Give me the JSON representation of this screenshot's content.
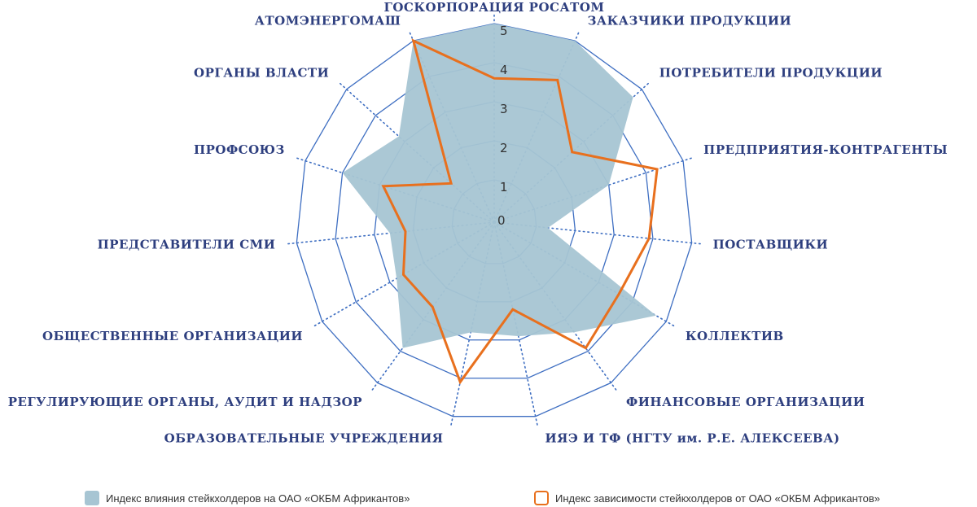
{
  "chart_data": {
    "type": "radar",
    "title": "",
    "categories": [
      "ГОСКОРПОРАЦИЯ РОСАТОМ",
      "ЗАКАЗЧИКИ ПРОДУКЦИИ",
      "ПОТРЕБИТЕЛИ ПРОДУКЦИИ",
      "ПРЕДПРИЯТИЯ-КОНТРАГЕНТЫ",
      "ПОСТАВЩИКИ",
      "КОЛЛЕКТИВ",
      "ФИНАНСОВЫЕ ОРГАНИЗАЦИИ",
      "ИЯЭ И ТФ (НГТУ им. Р.Е. АЛЕКСЕЕВА)",
      "ОБРАЗОВАТЕЛЬНЫЕ УЧРЕЖДЕНИЯ",
      "РЕГУЛИРУЮЩИЕ ОРГАНЫ, АУДИТ И НАДЗОР",
      "ОБЩЕСТВЕННЫЕ ОРГАНИЗАЦИИ",
      "ПРЕДСТАВИТЕЛИ СМИ",
      "ПРОФСОЮЗ",
      "ОРГАНЫ ВЛАСТИ",
      "АТОМЭНЕРГОМАШ"
    ],
    "rlim": [
      0,
      5
    ],
    "ticks": [
      "0",
      "1",
      "2",
      "3",
      "4",
      "5"
    ],
    "grid": true,
    "legend_position": "bottom",
    "series": [
      {
        "name": "Индекс влияния стейкхолдеров на ОАО «ОКБМ Африкантов»",
        "style": "area",
        "color": "#a7c5d3",
        "values": [
          5,
          5,
          4.7,
          3,
          1.3,
          4.7,
          3.4,
          2.9,
          2.8,
          3.9,
          2.8,
          2.6,
          4,
          3.2,
          5
        ]
      },
      {
        "name": "Индекс зависимости стейкхолдеров от ОАО «ОКБМ Африкантов»",
        "style": "line",
        "color": "#e8701e",
        "values": [
          3.6,
          3.9,
          2.6,
          4.3,
          3.9,
          3.6,
          3.9,
          2.2,
          4.1,
          2.6,
          2.6,
          2.2,
          2.9,
          1.4,
          5
        ]
      }
    ]
  }
}
